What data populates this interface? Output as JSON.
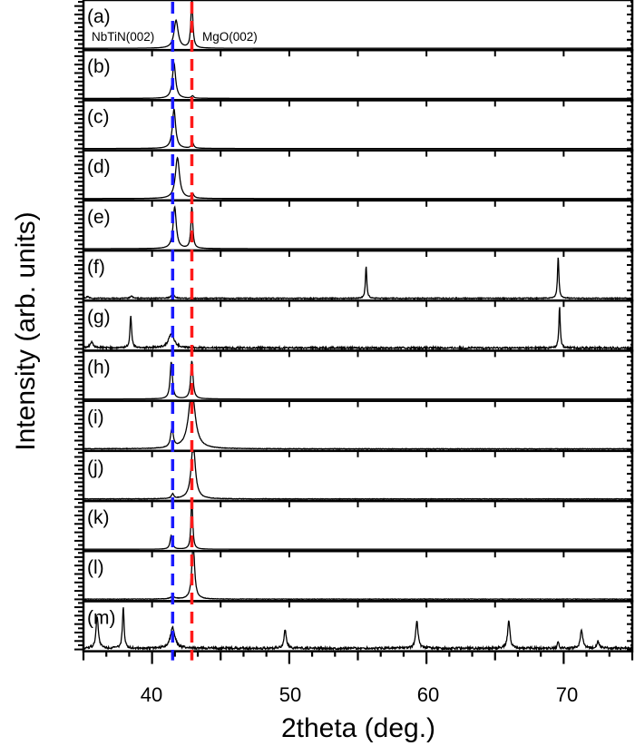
{
  "chart_data": {
    "type": "line",
    "xlabel": "2theta (deg.)",
    "ylabel": "Intensity (arb. units)",
    "xlim": [
      35,
      75
    ],
    "x_ticks": [
      "40",
      "50",
      "60",
      "70"
    ],
    "x_tick_values": [
      40,
      50,
      60,
      70
    ],
    "reference_lines": [
      {
        "label": "NbTiN(002)",
        "x": 41.5,
        "color": "#1a1aff",
        "style": "dashed"
      },
      {
        "label": "MgO(002)",
        "x": 42.9,
        "color": "#ff1a1a",
        "style": "dashed"
      }
    ],
    "panels": [
      {
        "label": "(a)",
        "peaks": [
          [
            41.75,
            0.6,
            0.18
          ],
          [
            42.9,
            1.1,
            0.08
          ]
        ],
        "noise": 0.0
      },
      {
        "label": "(b)",
        "peaks": [
          [
            41.6,
            0.76,
            0.14
          ],
          [
            42.95,
            0.05,
            0.1
          ]
        ],
        "noise": 0.0
      },
      {
        "label": "(c)",
        "peaks": [
          [
            41.6,
            0.85,
            0.14
          ],
          [
            42.95,
            0.12,
            0.1
          ]
        ],
        "noise": 0.0
      },
      {
        "label": "(d)",
        "peaks": [
          [
            41.85,
            0.88,
            0.18
          ],
          [
            42.95,
            0.1,
            0.1
          ]
        ],
        "noise": 0.0
      },
      {
        "label": "(e)",
        "peaks": [
          [
            41.65,
            0.9,
            0.14
          ],
          [
            42.9,
            0.9,
            0.08
          ]
        ],
        "noise": 0.0
      },
      {
        "label": "(f)",
        "peaks": [
          [
            35.3,
            0.04,
            0.1
          ],
          [
            38.5,
            0.05,
            0.1
          ],
          [
            41.5,
            0.1,
            0.12
          ],
          [
            55.6,
            0.7,
            0.06
          ],
          [
            69.6,
            0.9,
            0.06
          ]
        ],
        "noise": 0.02
      },
      {
        "label": "(g)",
        "peaks": [
          [
            35.6,
            0.12,
            0.15
          ],
          [
            38.45,
            0.7,
            0.07
          ],
          [
            41.4,
            0.3,
            0.25
          ],
          [
            69.7,
            0.9,
            0.06
          ]
        ],
        "noise": 0.04
      },
      {
        "label": "(h)",
        "peaks": [
          [
            41.4,
            0.8,
            0.1
          ],
          [
            42.9,
            0.82,
            0.1
          ]
        ],
        "noise": 0.0
      },
      {
        "label": "(i)",
        "peaks": [
          [
            41.45,
            0.4,
            0.12
          ],
          [
            42.9,
            1.3,
            0.28
          ]
        ],
        "noise": 0.01
      },
      {
        "label": "(j)",
        "peaks": [
          [
            41.5,
            0.1,
            0.1
          ],
          [
            43.0,
            1.2,
            0.18
          ]
        ],
        "noise": 0.01
      },
      {
        "label": "(k)",
        "peaks": [
          [
            41.4,
            0.3,
            0.1
          ],
          [
            42.9,
            1.2,
            0.07
          ]
        ],
        "noise": 0.0
      },
      {
        "label": "(l)",
        "peaks": [
          [
            41.5,
            0.05,
            0.2
          ],
          [
            43.0,
            1.2,
            0.12
          ]
        ],
        "noise": 0.01
      },
      {
        "label": "(m)",
        "peaks": [
          [
            36.0,
            0.7,
            0.1
          ],
          [
            37.9,
            0.9,
            0.07
          ],
          [
            41.5,
            0.45,
            0.2
          ],
          [
            49.7,
            0.4,
            0.1
          ],
          [
            59.3,
            0.6,
            0.1
          ],
          [
            66.0,
            0.6,
            0.1
          ],
          [
            69.6,
            0.15,
            0.06
          ],
          [
            71.3,
            0.4,
            0.1
          ],
          [
            72.5,
            0.15,
            0.1
          ]
        ],
        "noise": 0.05
      }
    ]
  }
}
